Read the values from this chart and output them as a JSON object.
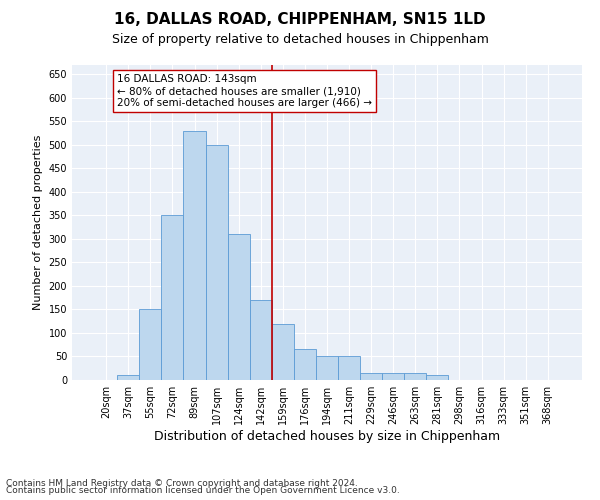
{
  "title": "16, DALLAS ROAD, CHIPPENHAM, SN15 1LD",
  "subtitle": "Size of property relative to detached houses in Chippenham",
  "xlabel": "Distribution of detached houses by size in Chippenham",
  "ylabel": "Number of detached properties",
  "categories": [
    "20sqm",
    "37sqm",
    "55sqm",
    "72sqm",
    "89sqm",
    "107sqm",
    "124sqm",
    "142sqm",
    "159sqm",
    "176sqm",
    "194sqm",
    "211sqm",
    "229sqm",
    "246sqm",
    "263sqm",
    "281sqm",
    "298sqm",
    "316sqm",
    "333sqm",
    "351sqm",
    "368sqm"
  ],
  "values": [
    0,
    10,
    150,
    350,
    530,
    500,
    310,
    170,
    120,
    65,
    50,
    50,
    15,
    15,
    15,
    10,
    0,
    0,
    0,
    0,
    0
  ],
  "bar_color": "#BDD7EE",
  "bar_edge_color": "#5B9BD5",
  "vline_x_index": 7,
  "vline_color": "#C00000",
  "annotation_text": "16 DALLAS ROAD: 143sqm\n← 80% of detached houses are smaller (1,910)\n20% of semi-detached houses are larger (466) →",
  "annotation_box_color": "#ffffff",
  "annotation_box_edge": "#C00000",
  "ylim": [
    0,
    670
  ],
  "yticks": [
    0,
    50,
    100,
    150,
    200,
    250,
    300,
    350,
    400,
    450,
    500,
    550,
    600,
    650
  ],
  "background_color": "#EAF0F8",
  "grid_color": "#ffffff",
  "footer_line1": "Contains HM Land Registry data © Crown copyright and database right 2024.",
  "footer_line2": "Contains public sector information licensed under the Open Government Licence v3.0.",
  "title_fontsize": 11,
  "subtitle_fontsize": 9,
  "xlabel_fontsize": 9,
  "ylabel_fontsize": 8,
  "tick_fontsize": 7,
  "footer_fontsize": 6.5,
  "ann_fontsize": 7.5
}
